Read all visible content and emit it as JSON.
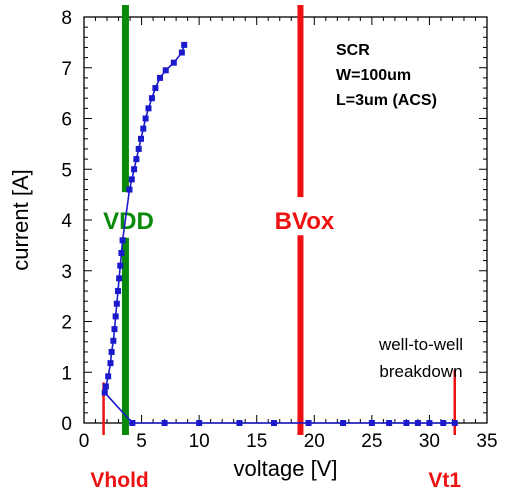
{
  "chart_data": {
    "type": "line",
    "xlabel": "voltage [V]",
    "ylabel": "current [A]",
    "xlim": [
      0,
      35
    ],
    "ylim": [
      0,
      8
    ],
    "x_ticks": [
      0,
      5,
      10,
      15,
      20,
      25,
      30,
      35
    ],
    "y_ticks": [
      0,
      1,
      2,
      3,
      4,
      5,
      6,
      7,
      8
    ],
    "grid": false,
    "series": [
      {
        "color": "#1a1acc",
        "points": [
          [
            32.2,
            0.0
          ],
          [
            31.2,
            0.0
          ],
          [
            30.0,
            0.0
          ],
          [
            29.0,
            0.0
          ],
          [
            28.0,
            0.0
          ],
          [
            26.5,
            0.0
          ],
          [
            25.0,
            0.0
          ],
          [
            22.5,
            0.0
          ],
          [
            19.5,
            0.0
          ],
          [
            16.5,
            0.0
          ],
          [
            13.5,
            0.0
          ],
          [
            10.0,
            0.0
          ],
          [
            7.0,
            0.0
          ],
          [
            4.2,
            0.0
          ],
          [
            1.8,
            0.6
          ],
          [
            1.9,
            0.72
          ],
          [
            2.1,
            0.92
          ],
          [
            2.3,
            1.18
          ],
          [
            2.4,
            1.4
          ],
          [
            2.55,
            1.62
          ],
          [
            2.65,
            1.85
          ],
          [
            2.75,
            2.1
          ],
          [
            2.85,
            2.35
          ],
          [
            2.95,
            2.6
          ],
          [
            3.05,
            2.85
          ],
          [
            3.15,
            3.1
          ],
          [
            3.25,
            3.35
          ],
          [
            3.35,
            3.6
          ],
          [
            3.95,
            4.6
          ],
          [
            4.15,
            4.8
          ],
          [
            4.35,
            5.0
          ],
          [
            4.55,
            5.2
          ],
          [
            4.75,
            5.4
          ],
          [
            4.95,
            5.6
          ],
          [
            5.15,
            5.8
          ],
          [
            5.35,
            6.0
          ],
          [
            5.6,
            6.2
          ],
          [
            5.9,
            6.4
          ],
          [
            6.2,
            6.6
          ],
          [
            6.6,
            6.8
          ],
          [
            7.1,
            6.95
          ],
          [
            7.8,
            7.1
          ],
          [
            8.5,
            7.3
          ],
          [
            8.7,
            7.45
          ]
        ]
      }
    ],
    "vertical_lines": [
      {
        "label": "VDD",
        "x": 3.6,
        "color": "#0a8a0a"
      },
      {
        "label": "BVox",
        "x": 18.8,
        "color": "#ee1111"
      }
    ],
    "device_info": [
      "SCR",
      "W=100um",
      "L=3um (ACS)"
    ],
    "annotation": [
      "well-to-well",
      "breakdown"
    ],
    "bottom_labels": [
      {
        "text": "Vhold",
        "x": 1.7,
        "color": "#ee1111"
      },
      {
        "text": "Vt1",
        "x": 32.2,
        "color": "#ee1111"
      }
    ]
  }
}
